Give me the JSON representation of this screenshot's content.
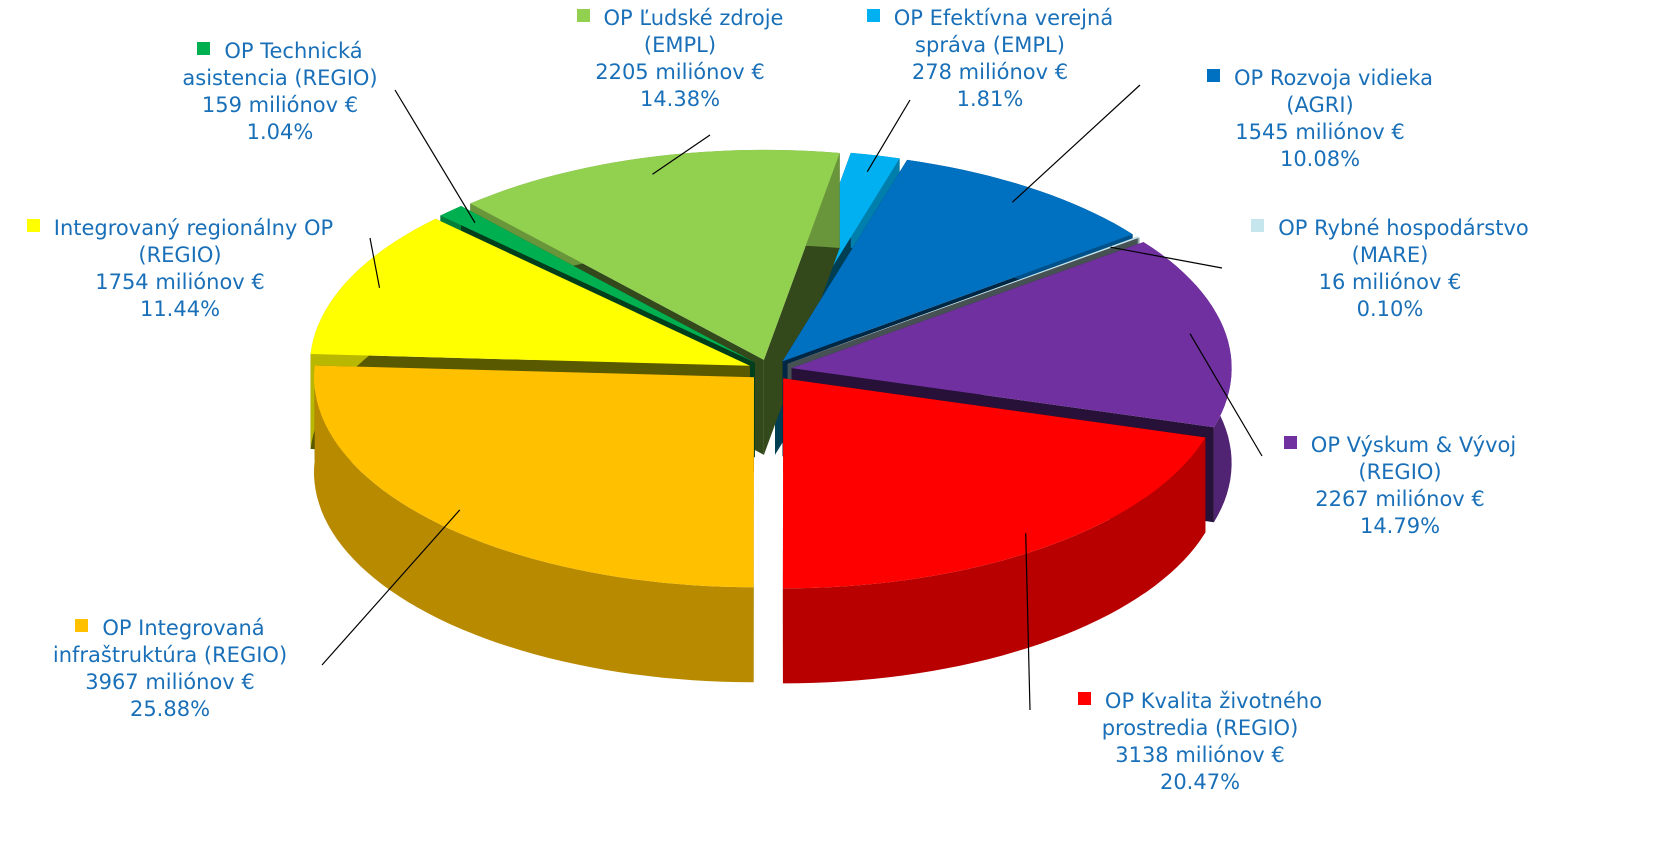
{
  "chart_data": {
    "type": "pie3d",
    "categories": [
      "OP Technická asistencia (REGIO)",
      "OP Ľudské zdroje (EMPL)",
      "OP Efektívna verejná správa (EMPL)",
      "OP Rozvoja vidieka (AGRI)",
      "OP Rybné hospodárstvo (MARE)",
      "OP Výskum & Vývoj (REGIO)",
      "OP Kvalita životného prostredia (REGIO)",
      "OP Integrovaná infraštruktúra (REGIO)",
      "Integrovaný regionálny OP (REGIO)"
    ],
    "values": [
      159,
      2205,
      278,
      1545,
      16,
      2267,
      3138,
      3967,
      1754
    ],
    "value_labels": [
      "159 miliónov €",
      "2205 miliónov €",
      "278 miliónov €",
      "1545 miliónov €",
      "16 miliónov €",
      "2267 miliónov €",
      "3138 miliónov €",
      "3967 miliónov €",
      "1754 miliónov €"
    ],
    "percents": [
      1.04,
      14.38,
      1.81,
      10.08,
      0.1,
      14.79,
      20.47,
      25.88,
      11.44
    ],
    "percent_labels": [
      "1.04%",
      "14.38%",
      "1.81%",
      "10.08%",
      "0.10%",
      "14.79%",
      "20.47%",
      "25.88%",
      "11.44%"
    ],
    "colors": [
      "#00b050",
      "#92d050",
      "#00b0f0",
      "#0070c0",
      "#c6e6ee",
      "#7030a0",
      "#ff0000",
      "#ffc000",
      "#ffff00"
    ]
  }
}
